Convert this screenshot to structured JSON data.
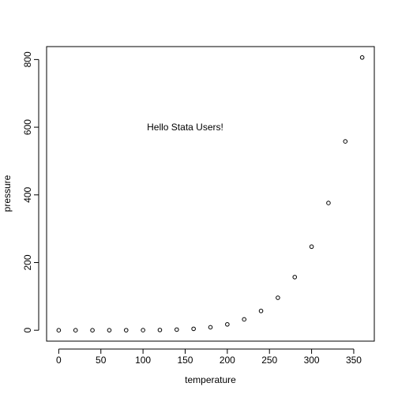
{
  "chart_data": {
    "type": "scatter",
    "xlabel": "temperature",
    "ylabel": "pressure",
    "xlim": [
      -14.4,
      374.4
    ],
    "ylim": [
      -32.216,
      838.216
    ],
    "x_ticks": [
      0,
      50,
      100,
      150,
      200,
      250,
      300,
      350
    ],
    "y_ticks": [
      0,
      200,
      400,
      600,
      800
    ],
    "grid": false,
    "marker": "open-circle",
    "point_color": "#000000",
    "annotation": {
      "text": "Hello Stata Users!",
      "x": 150,
      "y": 600
    },
    "points": {
      "x": [
        0,
        20,
        40,
        60,
        80,
        100,
        120,
        140,
        160,
        180,
        200,
        220,
        240,
        260,
        280,
        300,
        320,
        340,
        360
      ],
      "y": [
        0.0002,
        0.0012,
        0.006,
        0.03,
        0.09,
        0.27,
        0.75,
        1.85,
        4.2,
        8.8,
        17.3,
        32.1,
        57,
        96,
        157,
        247,
        376,
        558,
        806
      ]
    }
  }
}
